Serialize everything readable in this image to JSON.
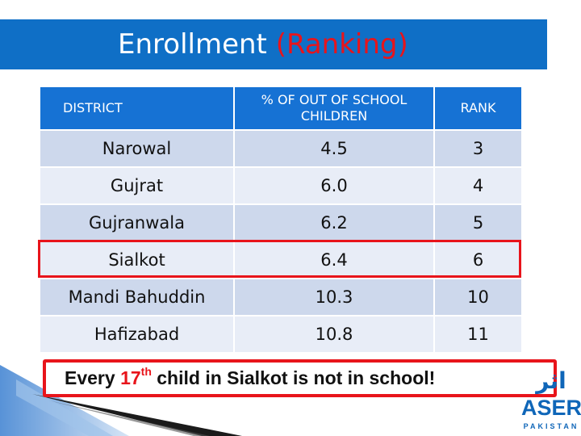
{
  "slide": {
    "title_main": "Enrollment",
    "title_accent": "(Ranking)"
  },
  "table": {
    "headers": [
      "DISTRICT",
      "% OF OUT OF SCHOOL CHILDREN",
      "RANK"
    ],
    "rows": [
      {
        "district": "Narowal",
        "percent": "4.5",
        "rank": "3"
      },
      {
        "district": "Gujrat",
        "percent": "6.0",
        "rank": "4"
      },
      {
        "district": "Gujranwala",
        "percent": "6.2",
        "rank": "5"
      },
      {
        "district": "Sialkot",
        "percent": "6.4",
        "rank": "6"
      },
      {
        "district": "Mandi Bahuddin",
        "percent": "10.3",
        "rank": "10"
      },
      {
        "district": "Hafizabad",
        "percent": "10.8",
        "rank": "11"
      }
    ],
    "highlighted_district": "Sialkot"
  },
  "message": {
    "before": "Every ",
    "ordinal_number": "17",
    "ordinal_suffix": "th",
    "after": " child in Sialkot is not in school!"
  },
  "logo": {
    "urdu": "اثر",
    "name": "ASER",
    "sub": "PAKISTAN"
  },
  "colors": {
    "title_bar": "#0f6fc6",
    "accent_red": "#e8141b",
    "header_blue": "#1672d4",
    "row_dark": "#cdd8ec",
    "row_light": "#e8edf7",
    "logo_blue": "#0f66b8"
  }
}
